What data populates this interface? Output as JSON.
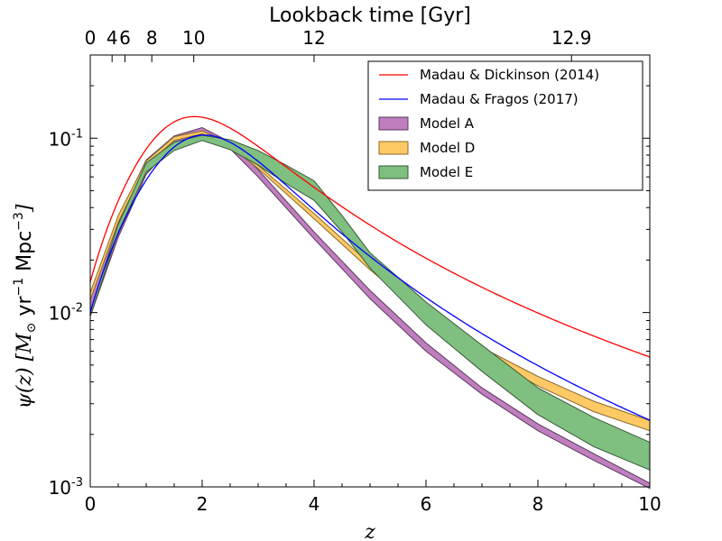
{
  "chart_data": {
    "type": "area",
    "xlabel": "z",
    "ylabel_main": "ψ(z) [M",
    "ylabel_sub": "⊙",
    "ylabel_tail": " yr",
    "ylabel_exp1": "−1",
    "ylabel_tail2": " Mpc",
    "ylabel_exp2": "−3",
    "ylabel_close": "]",
    "top_label": "Lookback time [Gyr]",
    "x_range": [
      0,
      10
    ],
    "y_range": [
      0.001,
      0.3
    ],
    "y_scale": "log",
    "x_ticks": [
      0,
      2,
      4,
      6,
      8,
      10
    ],
    "x_tick_labels": [
      "0",
      "2",
      "4",
      "6",
      "8",
      "10"
    ],
    "y_ticks": [
      {
        "value": 0.001,
        "base": "10",
        "exp": "-3"
      },
      {
        "value": 0.01,
        "base": "10",
        "exp": "-2"
      },
      {
        "value": 0.1,
        "base": "10",
        "exp": "-1"
      }
    ],
    "top_ticks": [
      {
        "z": 0.0,
        "label": "0"
      },
      {
        "z": 0.39,
        "label": "4"
      },
      {
        "z": 0.62,
        "label": "6"
      },
      {
        "z": 1.1,
        "label": "8"
      },
      {
        "z": 1.85,
        "label": "10"
      },
      {
        "z": 4.0,
        "label": "12"
      },
      {
        "z": 8.6,
        "label": "12.9"
      }
    ],
    "lines": [
      {
        "name": "Madau & Dickinson (2014)",
        "color": "#ff0000",
        "function": "madau_dickinson"
      },
      {
        "name": "Madau & Fragos (2017)",
        "color": "#0000ff",
        "function": "madau_fragos"
      }
    ],
    "bands": [
      {
        "name": "Model A",
        "fill": "#bf7fbf",
        "edge": "#5a3a5a",
        "z": [
          0,
          0.5,
          1.0,
          1.5,
          2.0,
          2.5,
          3.0,
          4.0,
          5.0,
          6.0,
          7.0,
          8.0,
          9.0,
          10.0
        ],
        "upper": [
          0.0125,
          0.035,
          0.075,
          0.103,
          0.115,
          0.095,
          0.066,
          0.029,
          0.0134,
          0.0067,
          0.0037,
          0.0023,
          0.00155,
          0.00105
        ],
        "lower": [
          0.0095,
          0.027,
          0.062,
          0.093,
          0.106,
          0.087,
          0.06,
          0.0265,
          0.012,
          0.006,
          0.0034,
          0.0021,
          0.00142,
          0.00098
        ]
      },
      {
        "name": "Model D",
        "fill": "#ffc966",
        "edge": "#8a6a2a",
        "z": [
          0,
          0.5,
          1.0,
          1.5,
          2.0,
          2.5,
          3.0,
          4.0,
          5.0,
          6.0,
          7.0,
          8.0,
          9.0,
          10.0
        ],
        "upper": [
          0.013,
          0.036,
          0.074,
          0.102,
          0.11,
          0.094,
          0.07,
          0.037,
          0.019,
          0.0104,
          0.0063,
          0.0043,
          0.0031,
          0.0024
        ],
        "lower": [
          0.0118,
          0.033,
          0.07,
          0.097,
          0.106,
          0.09,
          0.067,
          0.0345,
          0.0176,
          0.0096,
          0.0057,
          0.0038,
          0.0027,
          0.0021
        ]
      },
      {
        "name": "Model E",
        "fill": "#7fbf7f",
        "edge": "#3a5a3a",
        "z": [
          0,
          0.5,
          1.0,
          1.5,
          2.0,
          2.5,
          3.0,
          3.5,
          4.0,
          4.5,
          5.0,
          6.0,
          7.0,
          8.0,
          9.0,
          10.0
        ],
        "upper": [
          0.0102,
          0.032,
          0.072,
          0.095,
          0.104,
          0.098,
          0.085,
          0.07,
          0.057,
          0.036,
          0.022,
          0.0115,
          0.0065,
          0.0037,
          0.0025,
          0.0018
        ],
        "lower": [
          0.0095,
          0.029,
          0.064,
          0.085,
          0.097,
          0.086,
          0.07,
          0.055,
          0.044,
          0.029,
          0.018,
          0.0085,
          0.0046,
          0.0026,
          0.0017,
          0.00125
        ]
      }
    ],
    "legend_order": [
      "Madau & Dickinson (2014)",
      "Madau & Fragos (2017)",
      "Model A",
      "Model D",
      "Model E"
    ],
    "legend_placement": "top-right"
  }
}
